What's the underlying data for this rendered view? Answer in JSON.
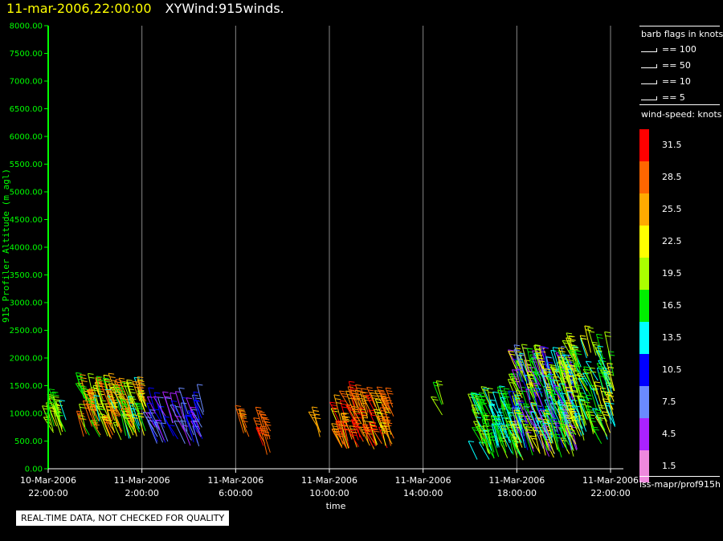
{
  "header": {
    "date": "11-mar-2006,22:00:00",
    "title": "XYWind:915winds."
  },
  "footer": {
    "notice": "REAL-TIME DATA, NOT CHECKED FOR QUALITY"
  },
  "legend": {
    "barb_title": "barb flags in knots",
    "barb_items": [
      "== 100",
      "== 50",
      "== 10",
      "== 5"
    ],
    "speed_title": "wind-speed: knots",
    "speed_scale": [
      {
        "label": "31.5",
        "color": "#ff0000"
      },
      {
        "label": "28.5",
        "color": "#ff6600"
      },
      {
        "label": "25.5",
        "color": "#ffaa00"
      },
      {
        "label": "22.5",
        "color": "#ffff00"
      },
      {
        "label": "19.5",
        "color": "#aaff00"
      },
      {
        "label": "16.5",
        "color": "#00ee00"
      },
      {
        "label": "13.5",
        "color": "#00ffff"
      },
      {
        "label": "10.5",
        "color": "#0000ff"
      },
      {
        "label": "7.5",
        "color": "#6a8aff"
      },
      {
        "label": "4.5",
        "color": "#aa22ff"
      },
      {
        "label": "1.5",
        "color": "#ee88dd"
      }
    ],
    "source": "iss-mapr/prof915h"
  },
  "colors": {
    "axis": "#00ff00",
    "gridline": "#888888",
    "tick_text": "#ffffff"
  },
  "chart_data": {
    "type": "scatter",
    "ylabel": "915 Profiler Altitude (m agl)",
    "xlabel": "time",
    "ylim": [
      0,
      8000
    ],
    "y_ticks": [
      "0.00",
      "500.00",
      "1000.00",
      "1500.00",
      "2000.00",
      "2500.00",
      "3000.00",
      "3500.00",
      "4000.00",
      "4500.00",
      "5000.00",
      "5500.00",
      "6000.00",
      "6500.00",
      "7000.00",
      "7500.00",
      "8000.00"
    ],
    "x_ticks": [
      {
        "hour": 0,
        "date": "10-Mar-2006",
        "time": "22:00:00"
      },
      {
        "hour": 4,
        "date": "11-Mar-2006",
        "time": "2:00:00"
      },
      {
        "hour": 8,
        "date": "11-Mar-2006",
        "time": "6:00:00"
      },
      {
        "hour": 12,
        "date": "11-Mar-2006",
        "time": "10:00:00"
      },
      {
        "hour": 16,
        "date": "11-Mar-2006",
        "time": "14:00:00"
      },
      {
        "hour": 20,
        "date": "11-Mar-2006",
        "time": "18:00:00"
      },
      {
        "hour": 24,
        "date": "11-Mar-2006",
        "time": "22:00:00"
      }
    ],
    "grid": true,
    "wind_clusters": [
      {
        "t0": 0.0,
        "t1": 0.9,
        "alt0": 600,
        "alt1": 1000,
        "spd0": 14,
        "spd1": 22,
        "count": 18
      },
      {
        "t0": 1.5,
        "t1": 4.2,
        "alt0": 500,
        "alt1": 1300,
        "spd0": 14,
        "spd1": 30,
        "count": 110
      },
      {
        "t0": 4.5,
        "t1": 6.7,
        "alt0": 400,
        "alt1": 1050,
        "spd0": 4,
        "spd1": 12,
        "count": 55
      },
      {
        "t0": 8.3,
        "t1": 8.6,
        "alt0": 500,
        "alt1": 750,
        "spd0": 26,
        "spd1": 30,
        "count": 4
      },
      {
        "t0": 9.1,
        "t1": 9.5,
        "alt0": 250,
        "alt1": 700,
        "spd0": 27,
        "spd1": 31,
        "count": 9
      },
      {
        "t0": 11.5,
        "t1": 11.7,
        "alt0": 500,
        "alt1": 800,
        "spd0": 26,
        "spd1": 28,
        "count": 3
      },
      {
        "t0": 12.4,
        "t1": 14.8,
        "alt0": 350,
        "alt1": 1150,
        "spd0": 22,
        "spd1": 31,
        "count": 75
      },
      {
        "t0": 16.6,
        "t1": 16.9,
        "alt0": 900,
        "alt1": 1200,
        "spd0": 17,
        "spd1": 19,
        "count": 3
      },
      {
        "t0": 18.3,
        "t1": 20.3,
        "alt0": 150,
        "alt1": 1100,
        "spd0": 12,
        "spd1": 20,
        "count": 90
      },
      {
        "t0": 20.0,
        "t1": 22.6,
        "alt0": 200,
        "alt1": 1800,
        "spd0": 3,
        "spd1": 24,
        "count": 220
      },
      {
        "t0": 22.0,
        "t1": 24.2,
        "alt0": 450,
        "alt1": 2100,
        "spd0": 12,
        "spd1": 24,
        "count": 110
      }
    ]
  }
}
